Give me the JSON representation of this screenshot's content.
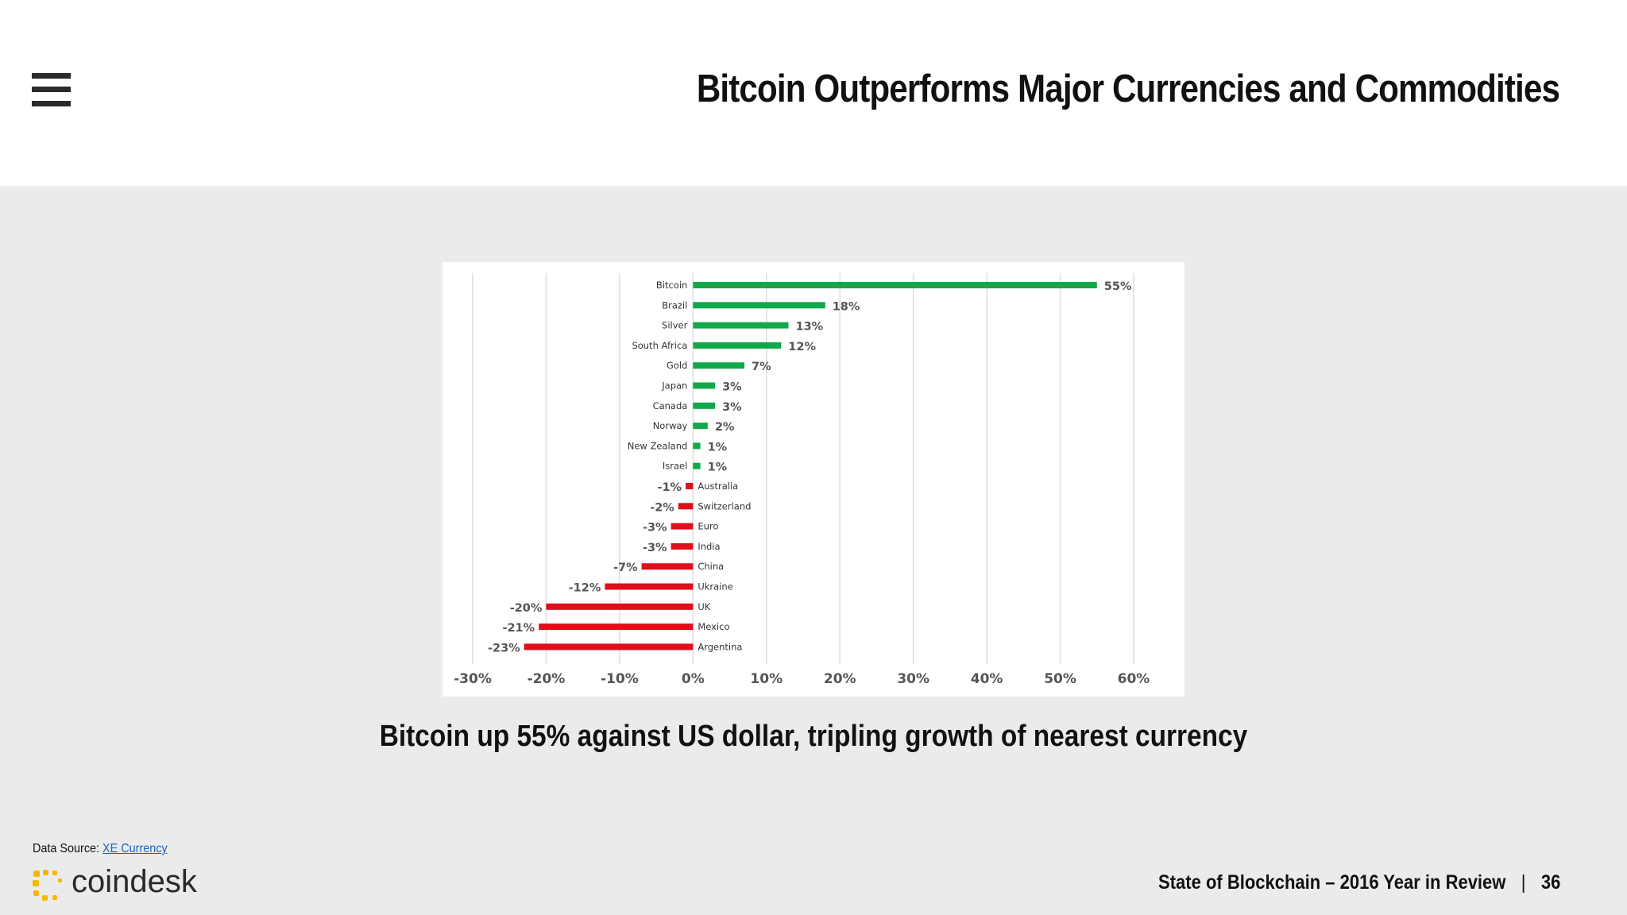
{
  "header": {
    "title": "Bitcoin Outperforms Major Currencies and Commodities"
  },
  "caption": "Bitcoin up 55% against US dollar, tripling growth of nearest currency",
  "source": {
    "label": "Data Source:",
    "link_text": "XE Currency"
  },
  "logo": {
    "text": "coindesk",
    "color": "#f5b800"
  },
  "footer": {
    "report": "State of Blockchain – 2016 Year in Review",
    "separator": "|",
    "page": "36"
  },
  "colors": {
    "positive": "#10a94a",
    "negative": "#e00d1b",
    "grid": "#dedede",
    "axis_text": "#555555"
  },
  "chart_data": {
    "type": "bar",
    "orientation": "horizontal",
    "title": "",
    "xlabel": "",
    "ylabel": "",
    "xlim": [
      -30,
      60
    ],
    "x_ticks": [
      -30,
      -20,
      -10,
      0,
      10,
      20,
      30,
      40,
      50,
      60
    ],
    "x_tick_labels": [
      "-30%",
      "-20%",
      "-10%",
      "0%",
      "10%",
      "20%",
      "30%",
      "40%",
      "50%",
      "60%"
    ],
    "grid": "vertical",
    "legend": "none",
    "categories": [
      "Bitcoin",
      "Brazil",
      "Silver",
      "South Africa",
      "Gold",
      "Japan",
      "Canada",
      "Norway",
      "New Zealand",
      "Israel",
      "Australia",
      "Switzerland",
      "Euro",
      "India",
      "China",
      "Ukraine",
      "UK",
      "Mexico",
      "Argentina"
    ],
    "values": [
      55,
      18,
      13,
      12,
      7,
      3,
      3,
      2,
      1,
      1,
      -1,
      -2,
      -3,
      -3,
      -7,
      -12,
      -20,
      -21,
      -23
    ],
    "value_labels": [
      "55%",
      "18%",
      "13%",
      "12%",
      "7%",
      "3%",
      "3%",
      "2%",
      "1%",
      "1%",
      "-1%",
      "-2%",
      "-3%",
      "-3%",
      "-7%",
      "-12%",
      "-20%",
      "-21%",
      "-23%"
    ]
  }
}
